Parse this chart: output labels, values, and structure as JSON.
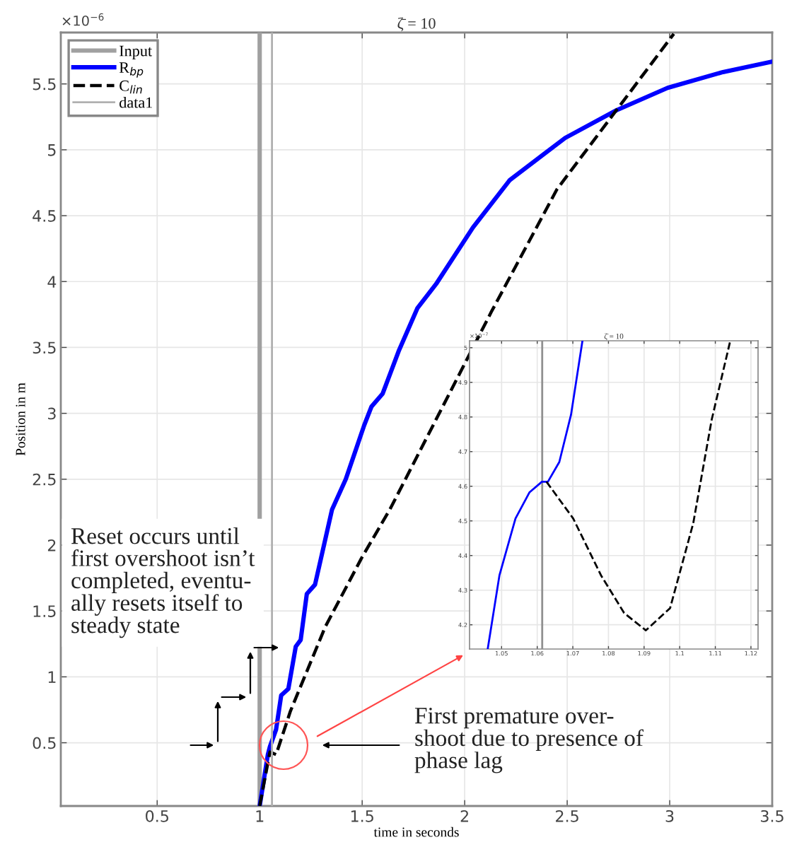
{
  "chart_data": [
    {
      "type": "line",
      "title": "ζ̄ = 10",
      "xlabel": "time in seconds",
      "ylabel": "Position in m",
      "xlim": [
        0.03,
        3.5
      ],
      "ylim": [
        0.02,
        5.89
      ],
      "xticks": [
        0.5,
        1,
        1.5,
        2,
        2.5,
        3,
        3.5
      ],
      "yticks": [
        0.5,
        1,
        1.5,
        2,
        2.5,
        3,
        3.5,
        4,
        4.5,
        5,
        5.5
      ],
      "grid": true,
      "legend": "top left",
      "series": [
        {
          "name": "Input",
          "color": "#a0a0a0",
          "x": [
            1,
            1
          ],
          "values": [
            0.02,
            5.89
          ]
        },
        {
          "name": "R$_{bp}$",
          "color": "#0000ff",
          "x": [
            1.0,
            1.04,
            1.05,
            1.08,
            1.105,
            1.14,
            1.176,
            1.2,
            1.23,
            1.27,
            1.353,
            1.42,
            1.51,
            1.545,
            1.6,
            1.68,
            1.77,
            1.86,
            2.04,
            2.22,
            2.49,
            2.74,
            2.99,
            3.26,
            3.5
          ],
          "values": [
            0.02,
            0.41,
            0.47,
            0.6,
            0.86,
            0.91,
            1.23,
            1.28,
            1.63,
            1.7,
            2.27,
            2.5,
            2.91,
            3.05,
            3.15,
            3.48,
            3.8,
            3.98,
            4.41,
            4.77,
            5.09,
            5.3,
            5.47,
            5.59,
            5.67
          ]
        },
        {
          "name": "C$_{lin}$",
          "color": "#000000",
          "line_style": "dashed",
          "x": [
            1.0,
            1.05,
            1.08,
            1.15,
            1.32,
            1.5,
            1.635,
            2.13,
            2.45,
            2.74,
            3.02
          ],
          "values": [
            0.02,
            0.43,
            0.41,
            0.74,
            1.38,
            1.91,
            2.27,
            3.77,
            4.7,
            5.3,
            5.88
          ]
        },
        {
          "name": "data1",
          "color": "#b0b0b0",
          "x": [
            1.06,
            1.06
          ],
          "values": [
            0.02,
            5.89
          ]
        }
      ],
      "annotations": [
        "×10$^{−6}$",
        "Reset occurs until\nfirst overshoot isn’t\ncompleted, eventu-\nally resets itself to\nsteady state",
        "First premature over-\nshoot due to presence of\nphase lag"
      ]
    },
    {
      "type": "line",
      "title": "ζ̄ = 10",
      "xlim": [
        1.041,
        1.122
      ],
      "ylim": [
        4.13,
        5.02
      ],
      "xticks": [
        1.05,
        1.06,
        1.07,
        1.08,
        1.09,
        1.1,
        1.11,
        1.12
      ],
      "yticks": [
        4.2,
        4.3,
        4.4,
        4.5,
        4.6,
        4.7,
        4.8,
        4.9,
        5
      ],
      "grid": true,
      "series": [
        {
          "color": "#909090",
          "x": [
            1.0614,
            1.0614
          ],
          "values": [
            4.13,
            5.02
          ]
        },
        {
          "color": "#0000ff",
          "x": [
            1.0461,
            1.0494,
            1.0539,
            1.0578,
            1.0613,
            1.063,
            1.0662,
            1.0695,
            1.0727
          ],
          "values": [
            4.13,
            4.343,
            4.507,
            4.582,
            4.613,
            4.613,
            4.67,
            4.807,
            5.02
          ]
        },
        {
          "color": "#000000",
          "line_style": "dashed",
          "x": [
            1.0626,
            1.0701,
            1.0779,
            1.0844,
            1.0905,
            1.0973,
            1.1038,
            1.109,
            1.1142
          ],
          "values": [
            4.613,
            4.507,
            4.343,
            4.234,
            4.184,
            4.248,
            4.493,
            4.793,
            5.02
          ]
        }
      ],
      "annotations": [
        "×10$^{−7}$"
      ]
    }
  ]
}
